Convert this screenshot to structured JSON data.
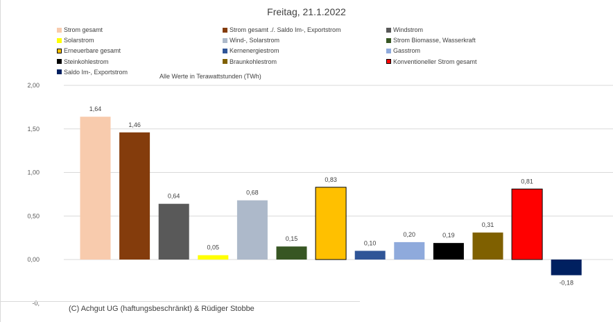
{
  "chart_data": {
    "type": "bar",
    "title": "Freitag, 21.1.2022",
    "subtitle": "Alle Werte in Terawattstunden (TWh)",
    "credit": "(C) Achgut UG (haftungsbeschränkt) & Rüdiger Stobbe",
    "ylim": [
      -0.5,
      2.0
    ],
    "yticks": [
      "2,00",
      "1,50",
      "1,00",
      "0,50",
      "0,00",
      "-0,"
    ],
    "ytick_values": [
      2.0,
      1.5,
      1.0,
      0.5,
      0.0,
      -0.5
    ],
    "grid": true,
    "legend_position": "top",
    "categories": [
      "Strom gesamt",
      "Strom gesamt ./. Saldo Im-, Exportstrom",
      "Windstrom",
      "Solarstrom",
      "Wind-, Solarstrom",
      "Strom Biomasse, Wasserkraft",
      "Erneuerbare gesamt",
      "Kernenergiestrom",
      "Gasstrom",
      "Steinkohlestrom",
      "Braunkohlestrom",
      "Konventioneller Strom gesamt",
      "Saldo Im-, Exportstrom"
    ],
    "values": [
      1.64,
      1.46,
      0.64,
      0.05,
      0.68,
      0.15,
      0.83,
      0.1,
      0.2,
      0.19,
      0.31,
      0.81,
      -0.18
    ],
    "value_labels": [
      "1,64",
      "1,46",
      "0,64",
      "0,05",
      "0,68",
      "0,15",
      "0,83",
      "0,10",
      "0,20",
      "0,19",
      "0,31",
      "0,81",
      "-0,18"
    ],
    "colors": [
      "#f8cbad",
      "#843c0c",
      "#595959",
      "#ffff00",
      "#adb9ca",
      "#375623",
      "#ffc000",
      "#2f5597",
      "#8faadc",
      "#000000",
      "#7f6000",
      "#ff0000",
      "#002060"
    ],
    "outlined": [
      false,
      false,
      false,
      false,
      false,
      false,
      true,
      false,
      false,
      false,
      false,
      true,
      false
    ]
  }
}
